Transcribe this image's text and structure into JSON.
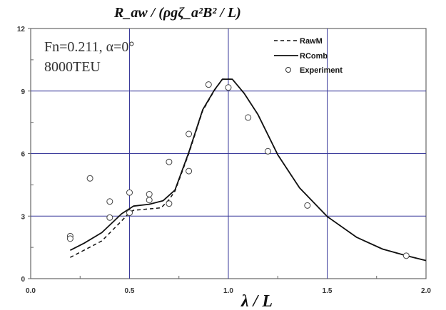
{
  "chart_data": {
    "type": "line",
    "title": "R_aw / (ρgζ_a²B² / L)",
    "xlabel": "λ / L",
    "ylabel": "",
    "xlim": [
      0,
      2.0
    ],
    "ylim": [
      0,
      12
    ],
    "xticks": [
      "0.0",
      "0.5",
      "1.0",
      "1.5",
      "2.0"
    ],
    "yticks": [
      "0",
      "3",
      "6",
      "9",
      "12"
    ],
    "grid": true,
    "legend_position": "top-right",
    "annotations": [
      "Fn=0.211, α=0°",
      "8000TEU"
    ],
    "series": [
      {
        "name": "RawM",
        "style": "dashed",
        "x": [
          0.2,
          0.36,
          0.46,
          0.5,
          0.52,
          0.66,
          0.7,
          0.73,
          0.8,
          0.87,
          0.93,
          0.97,
          1.02,
          1.08,
          1.15,
          1.25,
          1.36,
          1.5,
          1.65,
          1.78,
          1.9,
          2.0
        ],
        "y": [
          1.02,
          1.81,
          2.77,
          3.17,
          3.28,
          3.4,
          3.79,
          4.2,
          6.0,
          8.05,
          9.04,
          9.57,
          9.57,
          8.89,
          7.87,
          5.94,
          4.36,
          2.98,
          1.98,
          1.42,
          1.1,
          0.87
        ]
      },
      {
        "name": "RComb",
        "style": "solid",
        "x": [
          0.2,
          0.27,
          0.36,
          0.46,
          0.52,
          0.6,
          0.67,
          0.73,
          0.8,
          0.87,
          0.93,
          0.97,
          1.02,
          1.08,
          1.15,
          1.25,
          1.36,
          1.5,
          1.65,
          1.78,
          1.9,
          2.0
        ],
        "y": [
          1.36,
          1.7,
          2.21,
          3.11,
          3.48,
          3.57,
          3.74,
          4.25,
          6.06,
          8.1,
          9.06,
          9.57,
          9.57,
          8.89,
          7.87,
          5.94,
          4.36,
          2.98,
          1.98,
          1.42,
          1.1,
          0.87
        ]
      },
      {
        "name": "Experiment",
        "style": "markers",
        "x": [
          0.2,
          0.2,
          0.3,
          0.4,
          0.4,
          0.5,
          0.5,
          0.6,
          0.6,
          0.7,
          0.7,
          0.8,
          0.8,
          0.9,
          1.0,
          1.1,
          1.2,
          1.4,
          1.9
        ],
        "y": [
          2.04,
          1.92,
          4.81,
          3.7,
          2.93,
          4.13,
          3.16,
          4.05,
          3.77,
          5.6,
          3.6,
          6.94,
          5.16,
          9.31,
          9.17,
          7.73,
          6.11,
          3.51,
          1.1
        ]
      }
    ]
  },
  "colors": {
    "grid": "#3a3a9a",
    "line": "#111111",
    "axis": "#666666"
  }
}
